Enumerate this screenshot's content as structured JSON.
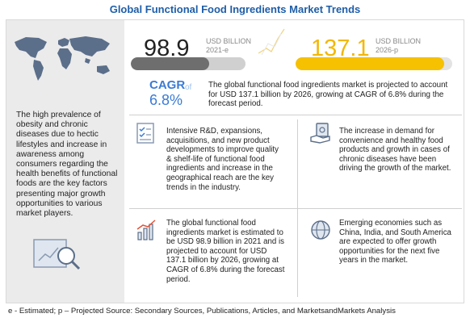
{
  "title": "Global Functional Food Ingredients Market Trends",
  "left_panel": {
    "description": "The high prevalence of obesity and chronic diseases due to hectic lifestyles and increase in awareness among consumers regarding the health benefits of functional foods are the key factors presenting major growth opportunities to various market players."
  },
  "market_2021": {
    "value": "98.9",
    "unit": "USD BILLION",
    "year": "2021-e",
    "bar_fraction": 0.68
  },
  "market_2026": {
    "value": "137.1",
    "unit": "USD BILLION",
    "year": "2026-p",
    "bar_fraction": 0.95
  },
  "cagr": {
    "label": "CAGR",
    "of_text": "of",
    "value": "6.8%"
  },
  "summary": "The global functional food ingredients market is projected to account for USD 137.1 billion by 2026, growing at CAGR of 6.8% during the forecast period.",
  "cards": [
    {
      "icon": "checklist-icon",
      "text": "Intensive R&D, expansions, acquisitions, and new product developments to improve quality & shelf-life of functional food ingredients and increase in the geographical reach are the key trends in the industry."
    },
    {
      "icon": "hand-money-icon",
      "text": "The increase in demand for convenience and healthy food products and growth in cases of chronic diseases have been driving the growth of the market."
    },
    {
      "icon": "growth-chart-icon",
      "text": "The global functional food ingredients market is estimated to be USD 98.9 billion in 2021 and is projected to account for USD 137.1 billion by 2026, growing at CAGR of 6.8% during the forecast period."
    },
    {
      "icon": "globe-icon",
      "text": "Emerging economies such as China, India, and South America are expected to offer growth opportunities for the next five years in the market."
    }
  ],
  "footer": "e - Estimated; p – Projected Source: Secondary Sources, Publications, Articles, and MarketsandMarkets Analysis",
  "colors": {
    "title": "#1e5ea8",
    "cagr": "#3a7bd5",
    "bar_2021": "#6e6e6e",
    "bar_2026": "#f5c100",
    "panel": "#ebebeb"
  }
}
